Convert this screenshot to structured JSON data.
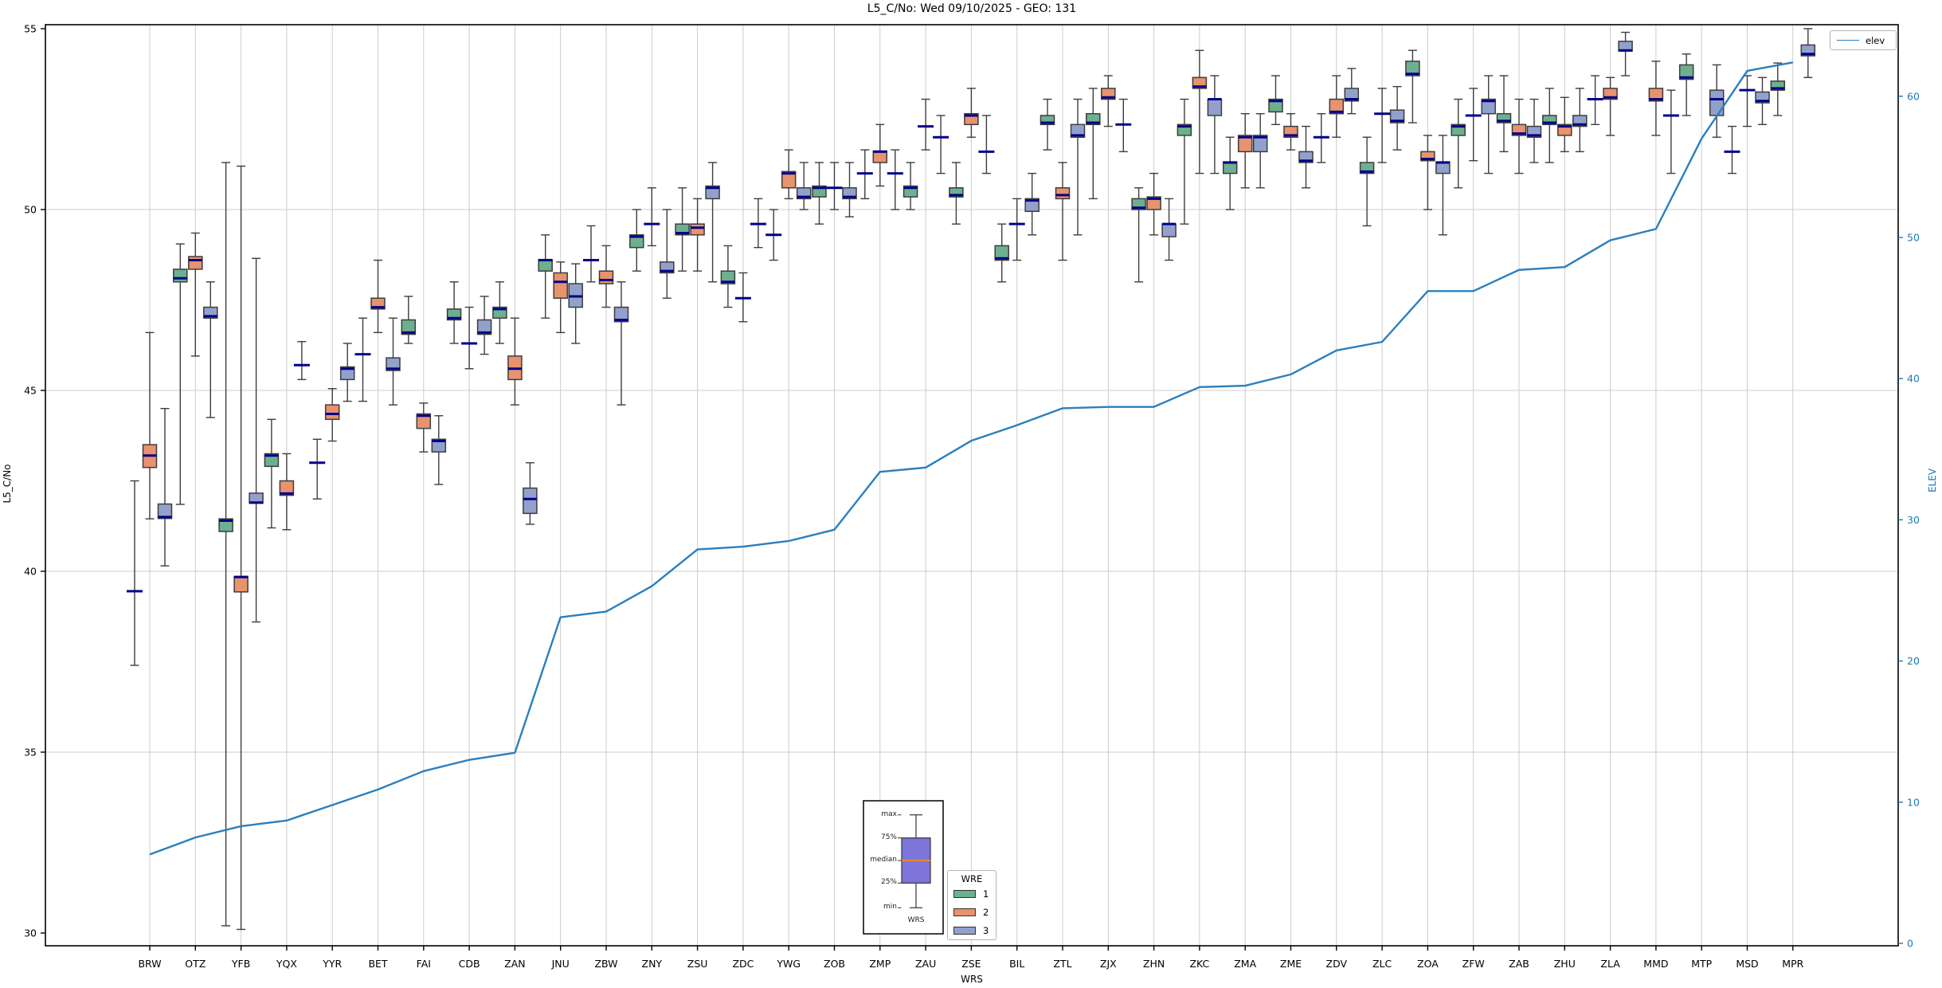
{
  "title": "L5_C/No: Wed 09/10/2025 - GEO: 131",
  "axes": {
    "y_left_label": "L5_C/No",
    "y_right_label": "ELEV",
    "x_label": "WRS",
    "y_left_ticks": [
      30,
      35,
      40,
      45,
      50,
      55
    ],
    "y_right_ticks": [
      0,
      10,
      20,
      30,
      40,
      50,
      60
    ]
  },
  "colors": {
    "wre1": "#6db08f",
    "wre2": "#e8926e",
    "wre3": "#92a1cc",
    "box_edge": "#3d3d3d",
    "median": "#00008b",
    "whisker": "#3d3d3d",
    "elev_line": "#2b7fbd",
    "right_axis_text": "#1f77b4",
    "grid": "#cccccc",
    "inset_box_fill": "#7d75da",
    "inset_median": "#e8862e"
  },
  "legend_wre": {
    "title": "WRE",
    "entries": [
      {
        "label": "1",
        "color_key": "wre1"
      },
      {
        "label": "2",
        "color_key": "wre2"
      },
      {
        "label": "3",
        "color_key": "wre3"
      }
    ]
  },
  "legend_elev": {
    "label": "elev"
  },
  "inset_legend": {
    "labels": [
      "max",
      "75%",
      "median",
      "25%",
      "min"
    ],
    "xlabel": "WRS"
  },
  "chart_data": {
    "type": "box+line",
    "box_format": "[median, q1, q3, whisker_lo, whisker_hi] ; q1/q3 null = median-dash only",
    "ylim_left": [
      29.6,
      55.1
    ],
    "ylim_right": [
      0,
      65
    ],
    "grid": true,
    "categories": [
      "BRW",
      "OTZ",
      "YFB",
      "YQX",
      "YYR",
      "BET",
      "FAI",
      "CDB",
      "ZAN",
      "JNU",
      "ZBW",
      "ZNY",
      "ZSU",
      "ZDC",
      "YWG",
      "ZOB",
      "ZMP",
      "ZAU",
      "ZSE",
      "BIL",
      "ZTL",
      "ZJX",
      "ZHN",
      "ZKC",
      "ZMA",
      "ZME",
      "ZDV",
      "ZLC",
      "ZOA",
      "ZFW",
      "ZAB",
      "ZHU",
      "ZLA",
      "MMD",
      "MTP",
      "MSD",
      "MPR"
    ],
    "elev": [
      6.3,
      7.5,
      8.3,
      8.7,
      9.8,
      10.9,
      12.2,
      13.0,
      13.5,
      23.1,
      23.5,
      25.3,
      27.9,
      28.1,
      28.5,
      29.3,
      33.4,
      33.7,
      35.6,
      36.7,
      37.9,
      38.0,
      38.0,
      39.4,
      39.5,
      40.3,
      42.0,
      42.6,
      46.2,
      46.2,
      47.7,
      47.9,
      49.8,
      50.6,
      57.0,
      61.8,
      62.4
    ],
    "wre1": [
      [
        39.45,
        null,
        null,
        37.4,
        42.5
      ],
      [
        48.1,
        48.0,
        48.35,
        41.85,
        49.05
      ],
      [
        41.4,
        41.1,
        41.45,
        30.2,
        51.3
      ],
      [
        43.2,
        42.9,
        43.25,
        41.2,
        44.2
      ],
      [
        43.0,
        null,
        null,
        42.0,
        43.65
      ],
      [
        46.0,
        null,
        null,
        44.7,
        47.0
      ],
      [
        46.6,
        46.55,
        46.95,
        46.3,
        47.6
      ],
      [
        47.0,
        46.95,
        47.25,
        46.3,
        48.0
      ],
      [
        47.25,
        47.0,
        47.3,
        46.3,
        48.0
      ],
      [
        48.6,
        48.3,
        48.62,
        47.0,
        49.3
      ],
      [
        48.6,
        null,
        null,
        48.0,
        49.55
      ],
      [
        49.25,
        48.95,
        49.3,
        48.3,
        50.0
      ],
      [
        49.35,
        49.3,
        49.6,
        48.3,
        50.6
      ],
      [
        48.0,
        47.95,
        48.3,
        47.3,
        49.0
      ],
      [
        49.3,
        null,
        null,
        48.6,
        50.0
      ],
      [
        50.6,
        50.35,
        50.65,
        49.6,
        51.3
      ],
      [
        51.0,
        null,
        null,
        50.3,
        51.65
      ],
      [
        50.6,
        50.35,
        50.65,
        50.0,
        51.3
      ],
      [
        50.4,
        50.35,
        50.6,
        49.6,
        51.3
      ],
      [
        48.65,
        48.6,
        49.0,
        48.0,
        49.6
      ],
      [
        52.4,
        52.35,
        52.6,
        51.65,
        53.05
      ],
      [
        52.4,
        52.35,
        52.65,
        50.3,
        53.35
      ],
      [
        50.05,
        50.0,
        50.3,
        48.0,
        50.6
      ],
      [
        52.3,
        52.05,
        52.35,
        49.6,
        53.05
      ],
      [
        51.3,
        51.0,
        51.32,
        50.0,
        52.0
      ],
      [
        53.0,
        52.7,
        53.05,
        52.35,
        53.7
      ],
      [
        52.0,
        null,
        null,
        51.3,
        52.65
      ],
      [
        51.05,
        51.0,
        51.3,
        49.55,
        52.0
      ],
      [
        53.75,
        53.7,
        54.1,
        52.4,
        54.4
      ],
      [
        52.3,
        52.05,
        52.35,
        50.6,
        53.05
      ],
      [
        52.45,
        52.4,
        52.65,
        51.6,
        53.7
      ],
      [
        52.4,
        52.35,
        52.6,
        51.3,
        53.35
      ],
      [
        53.05,
        null,
        null,
        52.35,
        53.7
      ],
      null,
      [
        53.65,
        53.6,
        54.0,
        52.6,
        54.3
      ],
      [
        51.6,
        null,
        null,
        51.0,
        52.3
      ],
      [
        53.35,
        53.3,
        53.55,
        52.6,
        54.05
      ]
    ],
    "wre2": [
      [
        43.2,
        42.87,
        43.5,
        41.45,
        46.6
      ],
      [
        48.6,
        48.35,
        48.7,
        45.95,
        49.35
      ],
      [
        39.84,
        39.43,
        39.86,
        30.1,
        51.2
      ],
      [
        42.15,
        42.1,
        42.5,
        41.15,
        43.25
      ],
      [
        44.35,
        44.2,
        44.6,
        43.6,
        45.05
      ],
      [
        47.3,
        47.25,
        47.55,
        46.6,
        48.6
      ],
      [
        44.3,
        43.95,
        44.35,
        43.3,
        44.65
      ],
      [
        46.3,
        null,
        null,
        45.6,
        47.3
      ],
      [
        45.6,
        45.3,
        45.95,
        44.6,
        47.0
      ],
      [
        48.0,
        47.55,
        48.25,
        46.6,
        48.55
      ],
      [
        48.05,
        47.95,
        48.3,
        47.3,
        49.0
      ],
      [
        49.6,
        null,
        null,
        49.0,
        50.6
      ],
      [
        49.5,
        49.3,
        49.6,
        48.3,
        50.3
      ],
      [
        47.55,
        null,
        null,
        46.9,
        48.25
      ],
      [
        51.0,
        50.6,
        51.05,
        50.3,
        51.65
      ],
      [
        50.6,
        null,
        null,
        50.0,
        51.3
      ],
      [
        51.6,
        51.3,
        51.62,
        50.65,
        52.35
      ],
      [
        52.3,
        null,
        null,
        51.65,
        53.05
      ],
      [
        52.6,
        52.35,
        52.65,
        52.0,
        53.35
      ],
      [
        49.6,
        null,
        null,
        48.6,
        50.3
      ],
      [
        50.4,
        50.3,
        50.6,
        48.6,
        51.3
      ],
      [
        53.1,
        53.05,
        53.35,
        52.3,
        53.7
      ],
      [
        50.3,
        50.0,
        50.35,
        49.3,
        51.0
      ],
      [
        53.4,
        53.35,
        53.65,
        51.0,
        54.4
      ],
      [
        52.0,
        51.6,
        52.05,
        50.6,
        52.65
      ],
      [
        52.05,
        52.0,
        52.3,
        51.65,
        52.65
      ],
      [
        52.7,
        52.65,
        53.05,
        52.0,
        53.7
      ],
      [
        52.65,
        null,
        null,
        51.3,
        53.35
      ],
      [
        51.4,
        51.35,
        51.6,
        50.0,
        52.05
      ],
      [
        52.6,
        null,
        null,
        51.35,
        53.35
      ],
      [
        52.1,
        52.05,
        52.35,
        51.0,
        53.05
      ],
      [
        52.3,
        52.05,
        52.35,
        51.6,
        53.1
      ],
      [
        53.1,
        53.05,
        53.35,
        52.05,
        53.65
      ],
      [
        53.05,
        53.0,
        53.35,
        52.05,
        54.1
      ],
      null,
      [
        53.3,
        null,
        null,
        52.3,
        53.7
      ],
      null
    ],
    "wre3": [
      [
        41.5,
        41.46,
        41.86,
        40.15,
        44.5
      ],
      [
        47.05,
        47.0,
        47.3,
        44.25,
        48.0
      ],
      [
        41.9,
        41.88,
        42.16,
        38.6,
        48.65
      ],
      [
        45.7,
        null,
        null,
        45.3,
        46.35
      ],
      [
        45.6,
        45.3,
        45.65,
        44.7,
        46.3
      ],
      [
        45.6,
        45.55,
        45.9,
        44.6,
        47.0
      ],
      [
        43.6,
        43.3,
        43.65,
        42.4,
        44.3
      ],
      [
        46.6,
        46.55,
        46.95,
        46.0,
        47.6
      ],
      [
        42.0,
        41.6,
        42.3,
        41.3,
        43.0
      ],
      [
        47.6,
        47.3,
        47.95,
        46.3,
        48.5
      ],
      [
        46.95,
        46.9,
        47.3,
        44.6,
        48.0
      ],
      [
        48.3,
        48.25,
        48.55,
        47.55,
        50.0
      ],
      [
        50.6,
        50.3,
        50.65,
        48.0,
        51.3
      ],
      [
        49.6,
        null,
        null,
        48.95,
        50.3
      ],
      [
        50.35,
        50.3,
        50.6,
        50.0,
        51.3
      ],
      [
        50.35,
        50.3,
        50.6,
        49.8,
        51.3
      ],
      [
        51.0,
        null,
        null,
        50.0,
        51.65
      ],
      [
        52.0,
        null,
        null,
        51.0,
        52.6
      ],
      [
        51.6,
        null,
        null,
        51.0,
        52.6
      ],
      [
        50.25,
        49.95,
        50.3,
        49.3,
        51.0
      ],
      [
        52.05,
        52.0,
        52.35,
        49.3,
        53.05
      ],
      [
        52.35,
        null,
        null,
        51.6,
        53.05
      ],
      [
        49.6,
        49.25,
        49.6,
        48.6,
        50.3
      ],
      [
        53.05,
        52.6,
        53.05,
        51.0,
        53.7
      ],
      [
        52.0,
        51.6,
        52.05,
        50.6,
        52.65
      ],
      [
        51.35,
        51.3,
        51.6,
        50.6,
        52.3
      ],
      [
        53.05,
        53.0,
        53.35,
        52.65,
        53.9
      ],
      [
        52.45,
        52.4,
        52.75,
        51.65,
        53.4
      ],
      [
        51.3,
        51.0,
        51.32,
        49.3,
        52.05
      ],
      [
        53.0,
        52.65,
        53.05,
        51.0,
        53.7
      ],
      [
        52.05,
        52.0,
        52.3,
        51.3,
        53.05
      ],
      [
        52.35,
        52.3,
        52.6,
        51.6,
        53.35
      ],
      [
        54.4,
        54.38,
        54.65,
        53.7,
        54.9
      ],
      [
        52.6,
        null,
        null,
        51.0,
        53.3
      ],
      [
        53.05,
        52.6,
        53.3,
        52.0,
        54.0
      ],
      [
        53.0,
        52.95,
        53.25,
        52.35,
        53.65
      ],
      [
        54.3,
        54.25,
        54.55,
        53.65,
        55.0
      ]
    ]
  }
}
